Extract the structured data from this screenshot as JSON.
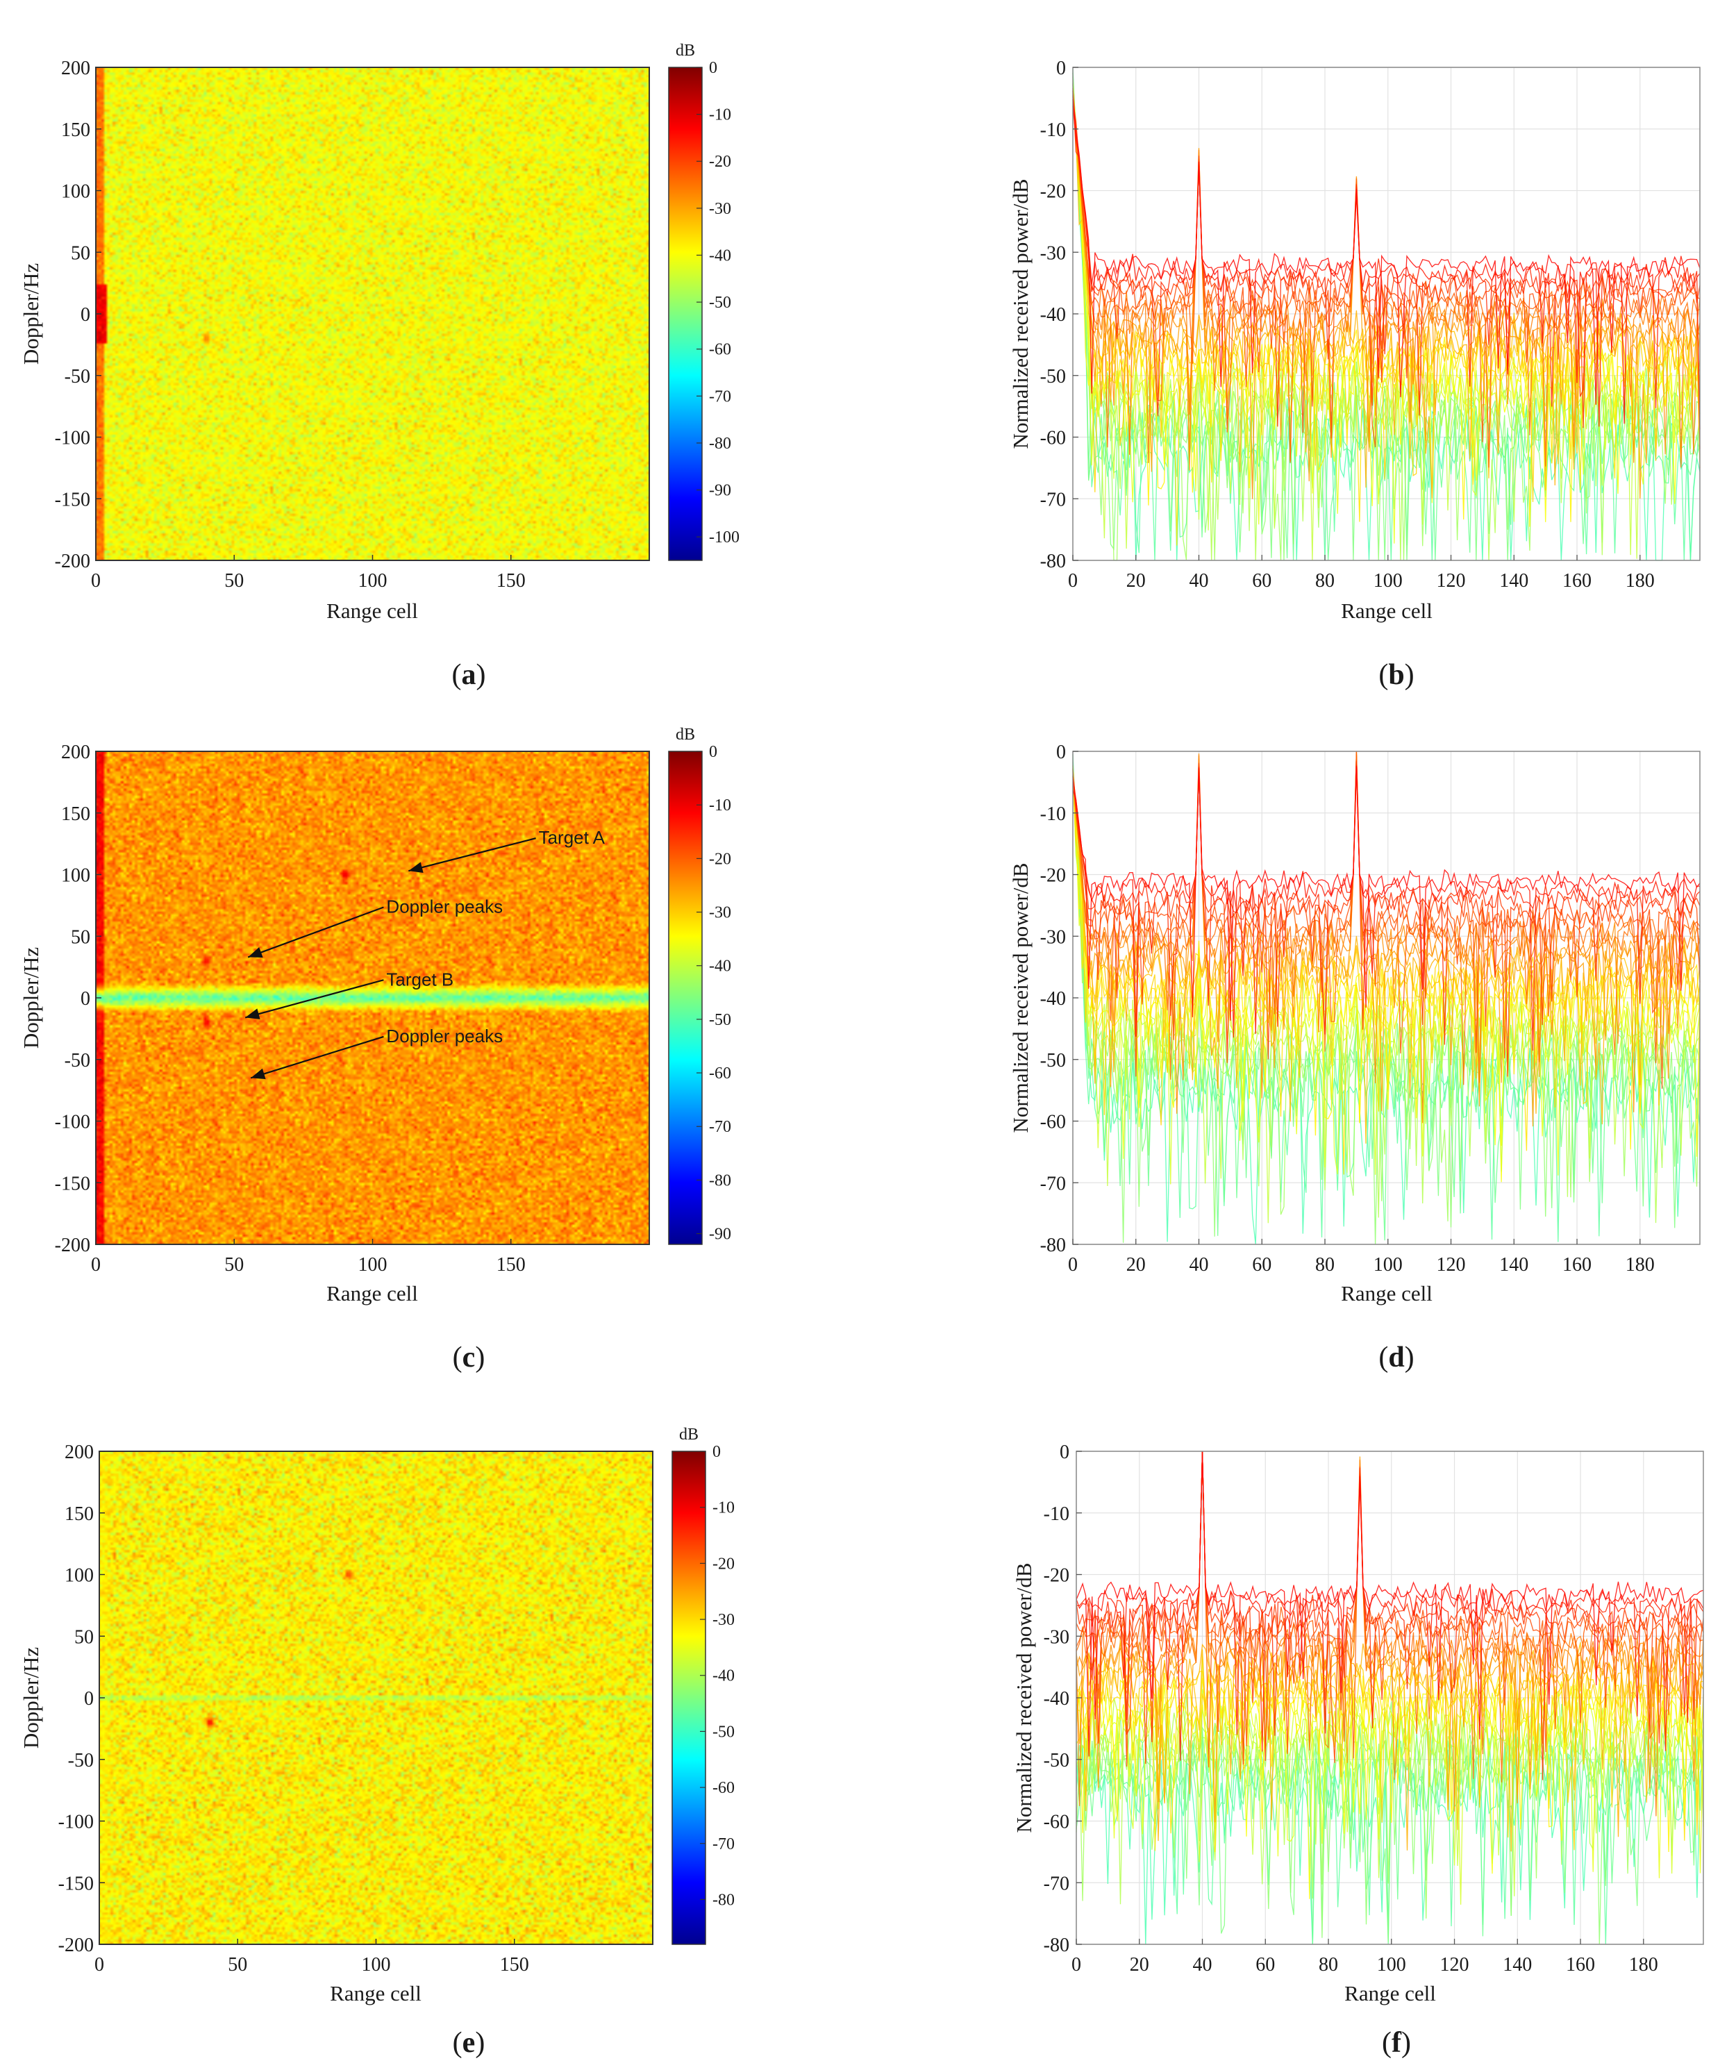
{
  "figure": {
    "panels": [
      "a",
      "b",
      "c",
      "d",
      "e",
      "f"
    ]
  },
  "chart_data": [
    {
      "panel": "a",
      "type": "heatmap",
      "xlabel": "Range cell",
      "ylabel": "Doppler/Hz",
      "x_ticks": [
        0,
        50,
        100,
        150
      ],
      "y_ticks": [
        200,
        150,
        100,
        50,
        0,
        -50,
        -100,
        -150,
        -200
      ],
      "xlim": [
        0,
        200
      ],
      "ylim": [
        -200,
        200
      ],
      "colorbar": {
        "unit": "dB",
        "ticks": [
          0,
          -10,
          -20,
          -30,
          -40,
          -50,
          -60,
          -70,
          -80,
          -90,
          -100
        ],
        "range": [
          -105,
          0
        ]
      },
      "background_level_db": -40,
      "background_spread_db": 5,
      "strip_level_db": -25,
      "features": [
        {
          "x": 0,
          "y": 0,
          "level_db": -10
        },
        {
          "x": 40,
          "y": -20,
          "level_db": -25
        }
      ],
      "annotations": []
    },
    {
      "panel": "b",
      "type": "line",
      "xlabel": "Range cell",
      "ylabel": "Normalized received power/dB",
      "x_ticks": [
        0,
        20,
        40,
        60,
        80,
        100,
        120,
        140,
        160,
        180
      ],
      "y_ticks": [
        0,
        -10,
        -20,
        -30,
        -40,
        -50,
        -60,
        -70,
        -80
      ],
      "xlim": [
        0,
        199
      ],
      "ylim": [
        -80,
        0
      ],
      "grid": true,
      "num_traces": 26,
      "top_envelope_db": -32,
      "bottom_envelope_db": -62,
      "initial_decay": {
        "from_db": 0,
        "to_range_cell": 6
      },
      "peaks": [
        {
          "x": 40,
          "y": -17
        },
        {
          "x": 90,
          "y": -21
        }
      ]
    },
    {
      "panel": "c",
      "type": "heatmap",
      "xlabel": "Range cell",
      "ylabel": "Doppler/Hz",
      "x_ticks": [
        0,
        50,
        100,
        150
      ],
      "y_ticks": [
        200,
        150,
        100,
        50,
        0,
        -50,
        -100,
        -150,
        -200
      ],
      "xlim": [
        0,
        200
      ],
      "ylim": [
        -200,
        200
      ],
      "colorbar": {
        "unit": "dB",
        "ticks": [
          0,
          -10,
          -20,
          -30,
          -40,
          -50,
          -60,
          -70,
          -80,
          -90
        ],
        "range": [
          -92,
          0
        ]
      },
      "background_level_db": -25,
      "background_spread_db": 5,
      "strip_level_db": -12,
      "clutter_band": {
        "y_center": 0,
        "half_width": 12,
        "level_db": -50
      },
      "features": [
        {
          "x": 90,
          "y": 100,
          "level_db": -8
        },
        {
          "x": 40,
          "y": 30,
          "level_db": -10
        },
        {
          "x": 40,
          "y": -20,
          "level_db": -10
        }
      ],
      "annotations": [
        {
          "text": "Target A",
          "text_x": 160,
          "text_y": 125,
          "arrow_x": 113,
          "arrow_y": 103
        },
        {
          "text": "Doppler peaks",
          "text_x": 105,
          "text_y": 69,
          "arrow_x": 55,
          "arrow_y": 33
        },
        {
          "text": "Target B",
          "text_x": 105,
          "text_y": 10,
          "arrow_x": 54,
          "arrow_y": -16
        },
        {
          "text": "Doppler peaks",
          "text_x": 105,
          "text_y": -36,
          "arrow_x": 56,
          "arrow_y": -65
        }
      ]
    },
    {
      "panel": "d",
      "type": "line",
      "xlabel": "Range cell",
      "ylabel": "Normalized received power/dB",
      "x_ticks": [
        0,
        20,
        40,
        60,
        80,
        100,
        120,
        140,
        160,
        180
      ],
      "y_ticks": [
        0,
        -10,
        -20,
        -30,
        -40,
        -50,
        -60,
        -70,
        -80
      ],
      "xlim": [
        0,
        199
      ],
      "ylim": [
        -80,
        0
      ],
      "grid": true,
      "num_traces": 26,
      "top_envelope_db": -21,
      "bottom_envelope_db": -55,
      "initial_decay": {
        "from_db": 0,
        "to_range_cell": 5
      },
      "peaks": [
        {
          "x": 40,
          "y": -4
        },
        {
          "x": 90,
          "y": -3
        }
      ]
    },
    {
      "panel": "e",
      "type": "heatmap",
      "xlabel": "Range cell",
      "ylabel": "Doppler/Hz",
      "x_ticks": [
        0,
        50,
        100,
        150
      ],
      "y_ticks": [
        200,
        150,
        100,
        50,
        0,
        -50,
        -100,
        -150,
        -200
      ],
      "xlim": [
        0,
        200
      ],
      "ylim": [
        -200,
        200
      ],
      "colorbar": {
        "unit": "dB",
        "ticks": [
          0,
          -10,
          -20,
          -30,
          -40,
          -50,
          -60,
          -70,
          -80
        ],
        "range": [
          -88,
          0
        ]
      },
      "background_level_db": -32,
      "background_spread_db": 5,
      "strip_level_db": -32,
      "clutter_band": {
        "y_center": 0,
        "half_width": 2,
        "level_db": -45
      },
      "features": [
        {
          "x": 90,
          "y": 100,
          "level_db": -15
        },
        {
          "x": 40,
          "y": -20,
          "level_db": -10
        }
      ],
      "annotations": []
    },
    {
      "panel": "f",
      "type": "line",
      "xlabel": "Range cell",
      "ylabel": "Normalized received power/dB",
      "x_ticks": [
        0,
        20,
        40,
        60,
        80,
        100,
        120,
        140,
        160,
        180
      ],
      "y_ticks": [
        0,
        -10,
        -20,
        -30,
        -40,
        -50,
        -60,
        -70,
        -80
      ],
      "xlim": [
        0,
        199
      ],
      "ylim": [
        -80,
        0
      ],
      "grid": true,
      "num_traces": 26,
      "top_envelope_db": -23,
      "bottom_envelope_db": -55,
      "initial_decay": null,
      "peaks": [
        {
          "x": 40,
          "y": 0
        },
        {
          "x": 90,
          "y": -5
        }
      ]
    }
  ]
}
